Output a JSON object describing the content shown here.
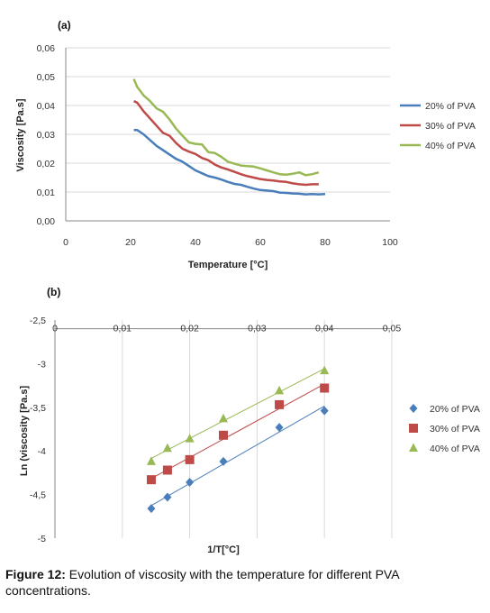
{
  "figure": {
    "caption_label": "Figure 12:",
    "caption_text": " Evolution of viscosity with the temperature for different PVA concentrations."
  },
  "chart_data": [
    {
      "type": "line",
      "panel_label": "(a)",
      "title": "",
      "xlabel": "Temperature [°C]",
      "ylabel": "Viscosity [Pa.s]",
      "xlim": [
        0,
        100
      ],
      "ylim": [
        0,
        0.06
      ],
      "xticks": [
        0,
        20,
        40,
        60,
        80,
        100
      ],
      "yticks": [
        0,
        0.01,
        0.02,
        0.03,
        0.04,
        0.05,
        0.06
      ],
      "xtick_labels": [
        "0",
        "20",
        "40",
        "60",
        "80",
        "100"
      ],
      "ytick_labels": [
        "0,00",
        "0,01",
        "0,02",
        "0,03",
        "0,04",
        "0,05",
        "0,06"
      ],
      "grid": "horizontal",
      "legend": "right",
      "series": [
        {
          "name": "20% of PVA",
          "color": "#4a7ebb",
          "x": [
            21,
            22,
            24,
            26,
            28,
            30,
            32,
            34,
            36,
            38,
            40,
            42,
            44,
            46,
            48,
            50,
            52,
            54,
            56,
            58,
            60,
            62,
            64,
            66,
            68,
            70,
            72,
            74,
            76,
            78,
            80
          ],
          "y": [
            0.0315,
            0.0315,
            0.03,
            0.028,
            0.026,
            0.0245,
            0.023,
            0.0215,
            0.0205,
            0.019,
            0.0175,
            0.0165,
            0.0155,
            0.015,
            0.0143,
            0.0135,
            0.0128,
            0.0125,
            0.0118,
            0.0112,
            0.0107,
            0.0105,
            0.0103,
            0.0098,
            0.0097,
            0.0095,
            0.0094,
            0.0092,
            0.0093,
            0.0092,
            0.0093
          ]
        },
        {
          "name": "30% of PVA",
          "color": "#be4b48",
          "x": [
            21,
            22,
            24,
            26,
            28,
            30,
            32,
            34,
            36,
            38,
            40,
            42,
            44,
            46,
            48,
            50,
            52,
            54,
            56,
            58,
            60,
            62,
            64,
            66,
            68,
            70,
            72,
            74,
            76,
            78
          ],
          "y": [
            0.0415,
            0.041,
            0.038,
            0.0355,
            0.033,
            0.0305,
            0.0295,
            0.027,
            0.025,
            0.024,
            0.0232,
            0.0218,
            0.021,
            0.0195,
            0.0185,
            0.0178,
            0.017,
            0.0162,
            0.0155,
            0.015,
            0.0145,
            0.0142,
            0.014,
            0.0137,
            0.0135,
            0.013,
            0.0127,
            0.0125,
            0.0127,
            0.0127
          ]
        },
        {
          "name": "40% of PVA",
          "color": "#98b954",
          "x": [
            21,
            22,
            24,
            26,
            28,
            30,
            32,
            34,
            36,
            38,
            40,
            42,
            44,
            46,
            48,
            50,
            52,
            54,
            56,
            58,
            60,
            62,
            64,
            66,
            68,
            70,
            72,
            74,
            76,
            78
          ],
          "y": [
            0.0492,
            0.0465,
            0.0435,
            0.0415,
            0.039,
            0.0378,
            0.0352,
            0.032,
            0.0295,
            0.0272,
            0.0267,
            0.0265,
            0.0238,
            0.0235,
            0.0222,
            0.0205,
            0.0198,
            0.0192,
            0.019,
            0.0188,
            0.0182,
            0.0175,
            0.0168,
            0.0162,
            0.016,
            0.0163,
            0.0168,
            0.0158,
            0.0162,
            0.0168
          ]
        }
      ]
    },
    {
      "type": "scatter",
      "panel_label": "(b)",
      "title": "",
      "xlabel": "1/T[°C]",
      "ylabel": "Ln (viscosity [Pa.s]",
      "xlim": [
        0,
        0.05
      ],
      "ylim": [
        -5,
        -2.5
      ],
      "xticks": [
        0,
        0.01,
        0.02,
        0.03,
        0.04,
        0.05
      ],
      "yticks": [
        -5,
        -4.5,
        -4,
        -3.5,
        -3,
        -2.5
      ],
      "xtick_labels": [
        "0",
        "0,01",
        "0,02",
        "0,03",
        "0,04",
        "0,05"
      ],
      "ytick_labels": [
        "-5",
        "-4,5",
        "-4",
        "-3,5",
        "-3",
        "-2,5"
      ],
      "xaxis_position": "top",
      "grid": "vertical",
      "trendlines": true,
      "legend": "right",
      "series": [
        {
          "name": "20% of PVA",
          "color": "#4a7ebb",
          "marker": "diamond",
          "x": [
            0.0143,
            0.0167,
            0.02,
            0.025,
            0.0333,
            0.04
          ],
          "y": [
            -4.66,
            -4.53,
            -4.36,
            -4.12,
            -3.73,
            -3.54
          ]
        },
        {
          "name": "30% of PVA",
          "color": "#be4b48",
          "marker": "square",
          "x": [
            0.0143,
            0.0167,
            0.02,
            0.025,
            0.0333,
            0.04
          ],
          "y": [
            -4.33,
            -4.22,
            -4.1,
            -3.82,
            -3.47,
            -3.28
          ]
        },
        {
          "name": "40% of PVA",
          "color": "#98b954",
          "marker": "triangle",
          "x": [
            0.0143,
            0.0167,
            0.02,
            0.025,
            0.0333,
            0.04
          ],
          "y": [
            -4.12,
            -3.97,
            -3.86,
            -3.63,
            -3.31,
            -3.08
          ]
        }
      ]
    }
  ]
}
